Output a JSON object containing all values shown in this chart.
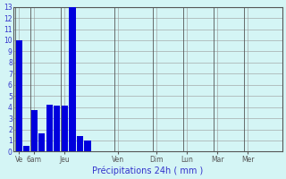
{
  "bars": [
    10,
    0.5,
    3.7,
    1.6,
    4.2,
    4.1,
    4.1,
    13,
    1.4,
    1.0,
    0,
    0,
    0,
    0,
    0,
    0,
    0,
    0,
    0,
    0,
    0,
    0,
    0,
    0,
    0,
    0,
    0,
    0,
    0,
    0,
    0,
    0,
    0,
    0,
    0
  ],
  "bar_color": "#0000dd",
  "background_color": "#d4f5f5",
  "grid_color": "#999999",
  "xlabel": "Précipitations 24h ( mm )",
  "xlabel_color": "#3333cc",
  "tick_label_color": "#3333cc",
  "ylim": [
    0,
    13
  ],
  "yticks": [
    0,
    1,
    2,
    3,
    4,
    5,
    6,
    7,
    8,
    9,
    10,
    11,
    12,
    13
  ],
  "n_total": 35,
  "day_labels": [
    "Ve",
    "6am",
    "Jeu",
    "Ven",
    "Dim",
    "Lun",
    "Mar",
    "Mer"
  ],
  "day_positions": [
    0,
    2,
    6,
    13,
    18,
    22,
    26,
    30
  ]
}
